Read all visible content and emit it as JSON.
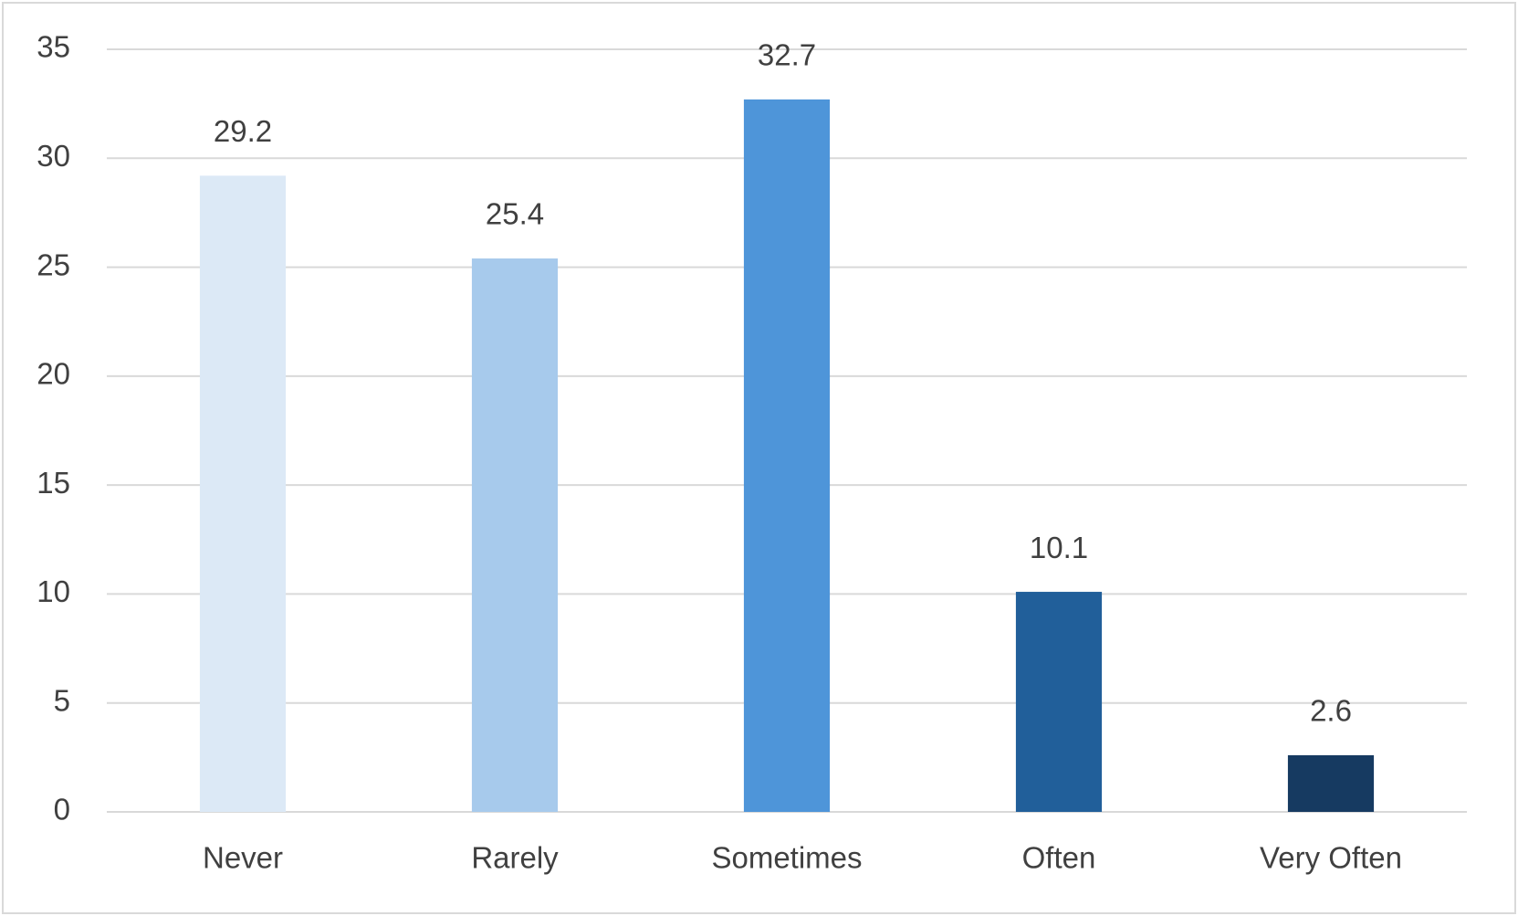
{
  "chart_data": {
    "type": "bar",
    "categories": [
      "Never",
      "Rarely",
      "Sometimes",
      "Often",
      "Very Often"
    ],
    "values": [
      29.2,
      25.4,
      32.7,
      10.1,
      2.6
    ],
    "colors": [
      "#dce9f6",
      "#a7caec",
      "#4e95d9",
      "#215f9a",
      "#163a61"
    ],
    "ylim": [
      0,
      35
    ],
    "yticks": [
      0,
      5,
      10,
      15,
      20,
      25,
      30,
      35
    ],
    "grid": true,
    "data_labels": true
  }
}
